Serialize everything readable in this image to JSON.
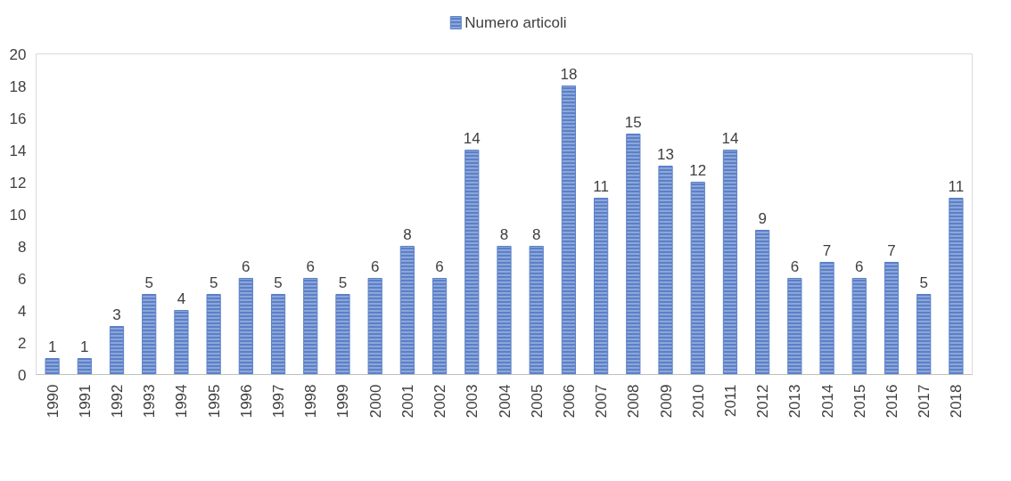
{
  "chart_data": {
    "type": "bar",
    "categories": [
      "1990",
      "1991",
      "1992",
      "1993",
      "1994",
      "1995",
      "1996",
      "1997",
      "1998",
      "1999",
      "2000",
      "2001",
      "2002",
      "2003",
      "2004",
      "2005",
      "2006",
      "2007",
      "2008",
      "2009",
      "2010",
      "2011",
      "2012",
      "2013",
      "2014",
      "2015",
      "2016",
      "2017",
      "2018"
    ],
    "series": [
      {
        "name": "Numero articoli",
        "color": "#5b80c8",
        "values": [
          1,
          1,
          3,
          5,
          4,
          5,
          6,
          5,
          6,
          5,
          6,
          8,
          6,
          14,
          8,
          8,
          18,
          11,
          15,
          13,
          12,
          14,
          9,
          6,
          7,
          6,
          7,
          5,
          11
        ]
      }
    ],
    "ylim": [
      0,
      20
    ],
    "yticks": [
      0,
      2,
      4,
      6,
      8,
      10,
      12,
      14,
      16,
      18,
      20
    ],
    "data_labels": true,
    "grid": false,
    "legend": "top"
  }
}
